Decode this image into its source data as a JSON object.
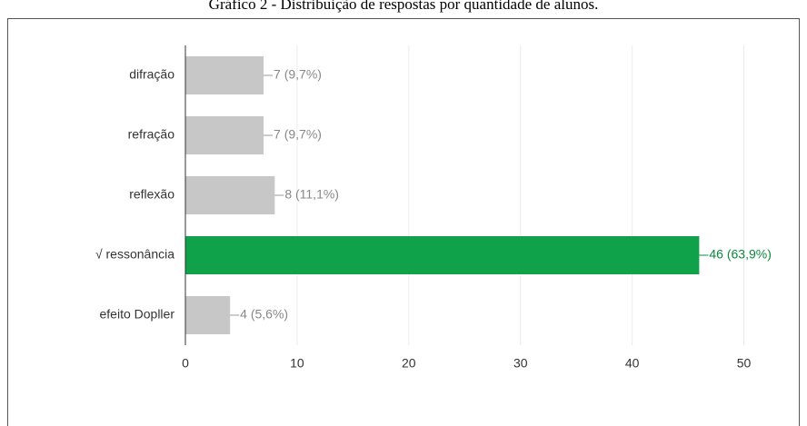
{
  "chart_data": {
    "type": "barh",
    "title": "Gráfico 2 - Distribuição de respostas por quantidade de alunos.",
    "categories": [
      "difração",
      "refração",
      "reflexão",
      "√ ressonância",
      "efeito Dopller"
    ],
    "values": [
      7,
      7,
      8,
      46,
      4
    ],
    "value_labels": [
      "7 (9,7%)",
      "7 (9,7%)",
      "8 (11,1%)",
      "46 (63,9%)",
      "4 (5,6%)"
    ],
    "colors": [
      "#c7c7c7",
      "#c7c7c7",
      "#c7c7c7",
      "#0fa24b",
      "#c7c7c7"
    ],
    "xlim": [
      0,
      55
    ],
    "xticks": [
      0,
      10,
      20,
      30,
      40,
      50
    ],
    "grid": true
  }
}
